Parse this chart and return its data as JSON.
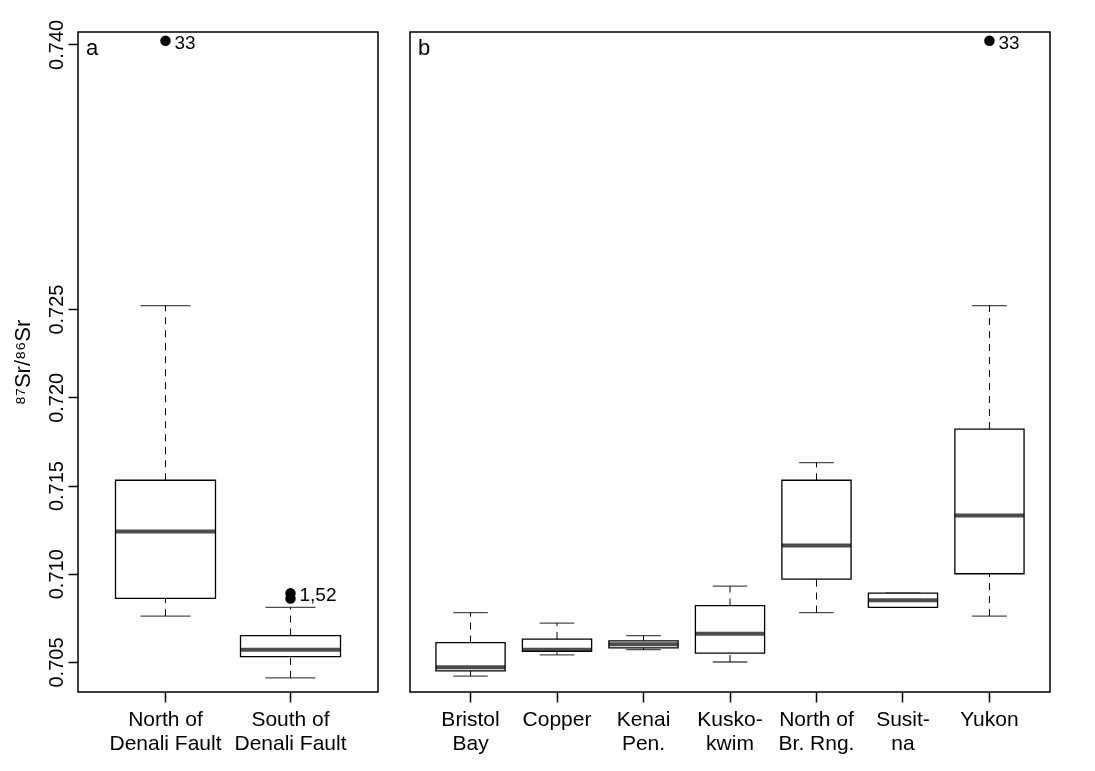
{
  "chart_data": [
    {
      "type": "box",
      "ylabel": "⁸⁷Sr/⁸⁶Sr",
      "categories": [
        "North of\nDenali Fault",
        "South of\nDenali Fault"
      ],
      "boxes": [
        {
          "low": 0.7076,
          "q1": 0.7086,
          "median": 0.7124,
          "q3": 0.7153,
          "high": 0.7252,
          "outliers": [
            0.7402
          ]
        },
        {
          "low": 0.7041,
          "q1": 0.7053,
          "median": 0.7057,
          "q3": 0.7065,
          "high": 0.7081,
          "outliers": [
            0.7089,
            0.7086
          ]
        }
      ],
      "ylim": [
        0.7033,
        0.7407
      ],
      "yticks": [
        0.705,
        {
          "value": 0.71,
          "label": "0.710"
        },
        0.715,
        {
          "value": 0.72,
          "label": "0.720"
        },
        0.725,
        {
          "value": 0.74,
          "label": "0.740"
        }
      ],
      "annotations": [
        "a",
        "33",
        "1,52"
      ]
    },
    {
      "type": "box",
      "categories": [
        "Bristol\nBay",
        "Copper",
        "Kenai\nPen.",
        "Kusko-\nkwim",
        "North of\nBr. Rng.",
        "Susit-\nna",
        "Yukon"
      ],
      "boxes": [
        {
          "low": 0.7042,
          "q1": 0.7045,
          "median": 0.7047,
          "q3": 0.7061,
          "high": 0.7078
        },
        {
          "low": 0.7054,
          "q1": 0.7056,
          "median": 0.7057,
          "q3": 0.7063,
          "high": 0.7072
        },
        {
          "low": 0.7057,
          "q1": 0.7058,
          "median": 0.706,
          "q3": 0.7062,
          "high": 0.7065
        },
        {
          "low": 0.705,
          "q1": 0.7055,
          "median": 0.7066,
          "q3": 0.7082,
          "high": 0.7093
        },
        {
          "low": 0.7078,
          "q1": 0.7097,
          "median": 0.7116,
          "q3": 0.7153,
          "high": 0.7163
        },
        {
          "low": 0.7081,
          "q1": 0.7081,
          "median": 0.7085,
          "q3": 0.7089,
          "high": 0.7089
        },
        {
          "low": 0.7076,
          "q1": 0.71,
          "median": 0.7133,
          "q3": 0.7182,
          "high": 0.7252,
          "outliers": [
            0.7402
          ]
        }
      ],
      "ylim": [
        0.7033,
        0.7407
      ],
      "tick_labels": "x",
      "annotations": [
        "b",
        "33"
      ]
    }
  ]
}
